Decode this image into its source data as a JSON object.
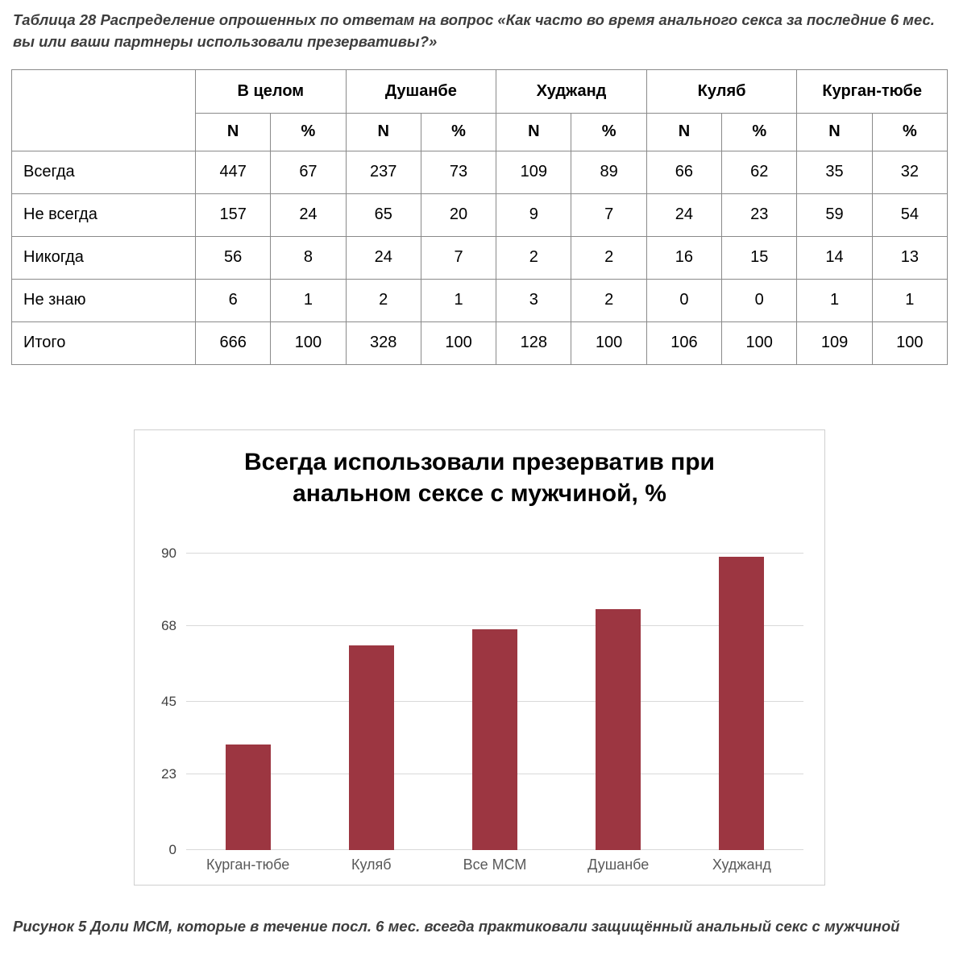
{
  "page": {
    "table_caption": "Таблица 28 Распределение опрошенных по ответам на вопрос «Как часто во время анального секса за последние 6 мес. вы или ваши партнеры использовали презервативы?»",
    "figure_caption": "Рисунок 5 Доли МСМ, которые в течение посл. 6 мес. всегда практиковали защищённый анальный секс с мужчиной"
  },
  "table": {
    "groups": [
      "В целом",
      "Душанбе",
      "Худжанд",
      "Куляб",
      "Курган-тюбе"
    ],
    "subheaders": [
      "N",
      "%"
    ],
    "rows": [
      {
        "label": "Всегда",
        "values": [
          "447",
          "67",
          "237",
          "73",
          "109",
          "89",
          "66",
          "62",
          "35",
          "32"
        ]
      },
      {
        "label": "Не всегда",
        "values": [
          "157",
          "24",
          "65",
          "20",
          "9",
          "7",
          "24",
          "23",
          "59",
          "54"
        ]
      },
      {
        "label": "Никогда",
        "values": [
          "56",
          "8",
          "24",
          "7",
          "2",
          "2",
          "16",
          "15",
          "14",
          "13"
        ]
      },
      {
        "label": "Не знаю",
        "values": [
          "6",
          "1",
          "2",
          "1",
          "3",
          "2",
          "0",
          "0",
          "1",
          "1"
        ]
      },
      {
        "label": "Итого",
        "values": [
          "666",
          "100",
          "328",
          "100",
          "128",
          "100",
          "106",
          "100",
          "109",
          "100"
        ]
      }
    ]
  },
  "chart_data": {
    "type": "bar",
    "title": "Всегда использовали презерватив при анальном сексе с мужчиной, %",
    "categories": [
      "Курган-тюбе",
      "Куляб",
      "Все МСМ",
      "Душанбе",
      "Худжанд"
    ],
    "values": [
      32,
      62,
      67,
      73,
      89
    ],
    "yticks": [
      0,
      23,
      45,
      68,
      90
    ],
    "ylim": [
      0,
      90
    ],
    "bar_color": "#9c3641",
    "grid": true,
    "legend": false
  }
}
